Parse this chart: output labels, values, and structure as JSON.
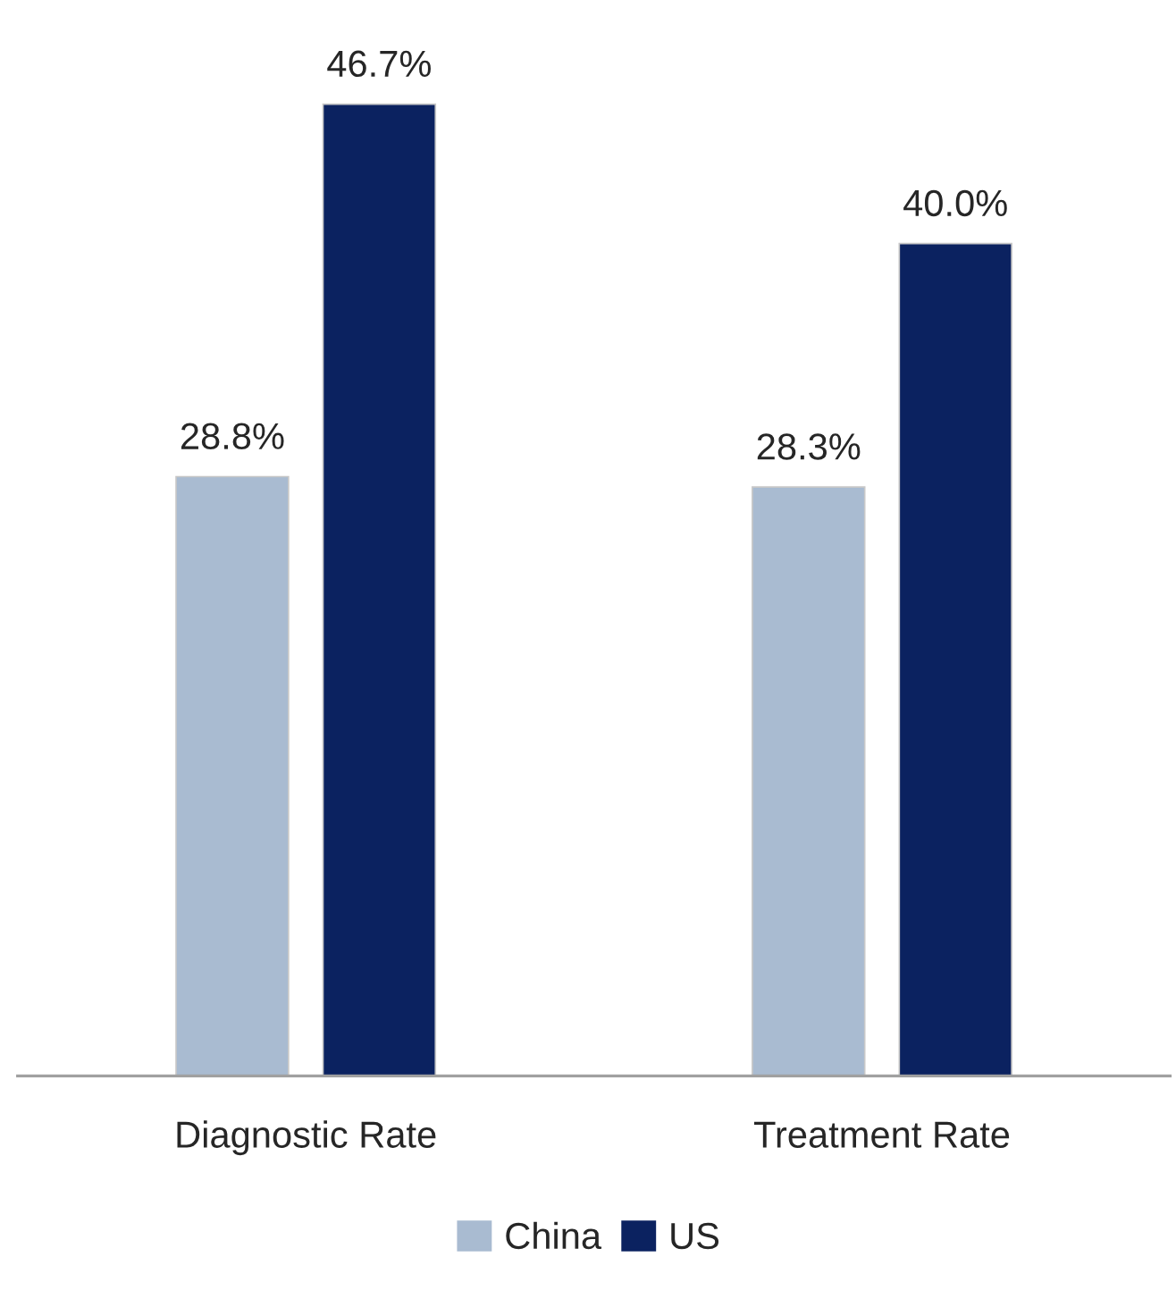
{
  "chart_data": {
    "type": "bar",
    "categories": [
      "Diagnostic Rate",
      "Treatment Rate"
    ],
    "series": [
      {
        "name": "China",
        "color": "#a9bbd1",
        "values": [
          28.8,
          28.3
        ],
        "value_labels": [
          "28.8%",
          "28.3%"
        ]
      },
      {
        "name": "US",
        "color": "#0b2260",
        "values": [
          46.7,
          40.0
        ],
        "value_labels": [
          "46.7%",
          "40.0%"
        ]
      }
    ],
    "tick_labels": "x",
    "legend": "bottom"
  }
}
